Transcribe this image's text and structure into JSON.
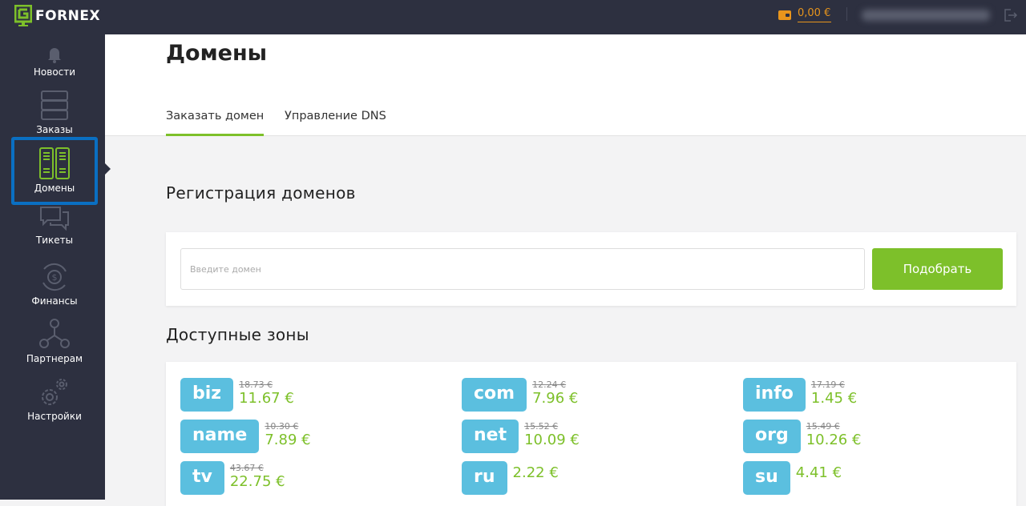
{
  "topbar": {
    "logo": "FORNEX",
    "balance": "0,00 €"
  },
  "sidebar": {
    "items": [
      {
        "label": "Новости",
        "icon": "bell-icon"
      },
      {
        "label": "Заказы",
        "icon": "server-icon"
      },
      {
        "label": "Домены",
        "icon": "domains-icon",
        "active": true
      },
      {
        "label": "Тикеты",
        "icon": "chat-icon"
      },
      {
        "label": "Финансы",
        "icon": "finance-icon"
      },
      {
        "label": "Партнерам",
        "icon": "partners-icon"
      },
      {
        "label": "Настройки",
        "icon": "gears-icon"
      }
    ]
  },
  "page": {
    "title": "Домены",
    "tabs": [
      {
        "label": "Заказать домен",
        "active": true
      },
      {
        "label": "Управление DNS"
      }
    ]
  },
  "registration": {
    "heading": "Регистрация доменов",
    "placeholder": "Введите домен",
    "button": "Подобрать"
  },
  "zones": {
    "heading": "Доступные зоны",
    "items": [
      {
        "name": "biz",
        "old": "18.73 €",
        "price": "11.67 €"
      },
      {
        "name": "com",
        "old": "12.24 €",
        "price": "7.96 €"
      },
      {
        "name": "info",
        "old": "17.19 €",
        "price": "1.45 €"
      },
      {
        "name": "name",
        "old": "10.30 €",
        "price": "7.89 €"
      },
      {
        "name": "net",
        "old": "15.52 €",
        "price": "10.09 €"
      },
      {
        "name": "org",
        "old": "15.49 €",
        "price": "10.26 €"
      },
      {
        "name": "tv",
        "old": "43.67 €",
        "price": "22.75 €"
      },
      {
        "name": "ru",
        "old": null,
        "price": "2.22 €"
      },
      {
        "name": "su",
        "old": null,
        "price": "4.41 €"
      }
    ]
  },
  "colors": {
    "accent": "#7dc02a",
    "badge": "#5bbfdf",
    "sidebar": "#2d3040",
    "balance": "#e8951c",
    "active_outline": "#0a6fc2"
  }
}
